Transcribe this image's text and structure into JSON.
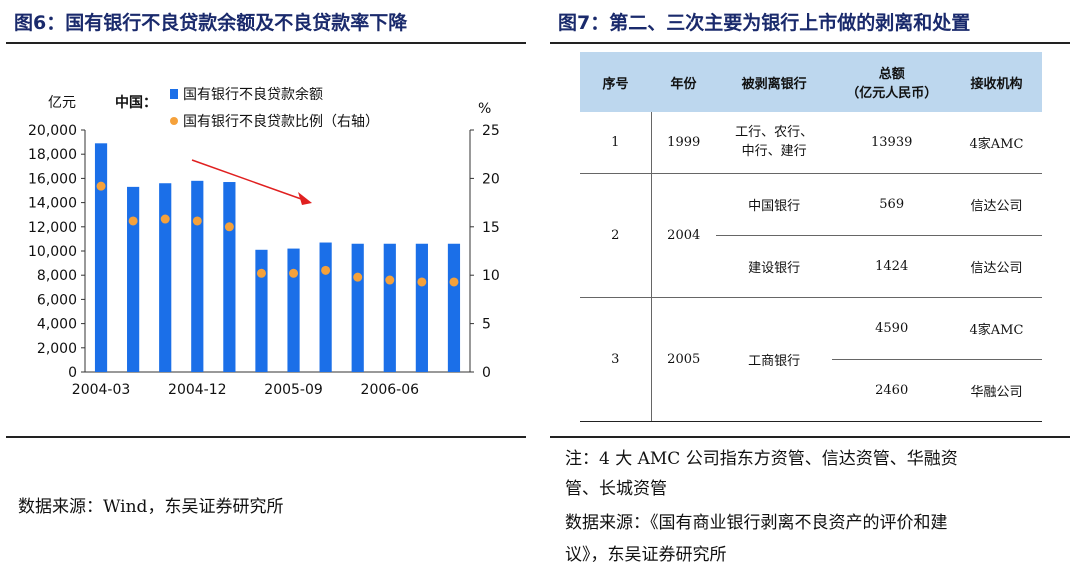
{
  "left": {
    "title": "图6：国有银行不良贷款余额及不良贷款率下降",
    "source": "数据来源：Wind，东吴证券研究所"
  },
  "right": {
    "title": "图7：第二、三次主要为银行上市做的剥离和处置",
    "table": {
      "headers": [
        "序号",
        "年份",
        "被剥离银行",
        "总额\n（亿元人民币）",
        "接收机构"
      ],
      "rows": [
        {
          "no": "1",
          "year": "1999",
          "bank": "工行、农行、\n中行、建行",
          "amount": "13939",
          "receiver": "4家AMC"
        },
        {
          "no": "2",
          "year": "2004",
          "bank": "中国银行",
          "amount": "569",
          "receiver": "信达公司"
        },
        {
          "no": "",
          "year": "",
          "bank": "建设银行",
          "amount": "1424",
          "receiver": "信达公司"
        },
        {
          "no": "3",
          "year": "2005",
          "bank": "工商银行",
          "amount": "4590",
          "receiver": "4家AMC"
        },
        {
          "no": "",
          "year": "",
          "bank": "",
          "amount": "2460",
          "receiver": "华融公司"
        }
      ]
    },
    "note_line1": "注：4 大 AMC 公司指东方资管、信达资管、华融资",
    "note_line2": "管、长城资管",
    "source_line1": "数据来源：《国有商业银行剥离不良资产的评价和建",
    "source_line2": "议》，东吴证券研究所"
  },
  "chart_data": {
    "type": "bar",
    "title": "",
    "region_label": "中国：",
    "ylabel": "亿元",
    "y2label": "%",
    "ylim": [
      0,
      20000
    ],
    "y2lim": [
      0,
      25
    ],
    "yticks": [
      "0",
      "2,000",
      "4,000",
      "6,000",
      "8,000",
      "10,000",
      "12,000",
      "14,000",
      "16,000",
      "18,000",
      "20,000"
    ],
    "y2ticks": [
      "0",
      "5",
      "10",
      "15",
      "20",
      "25"
    ],
    "x_tick_labels": [
      {
        "label": "2004-03",
        "index": 0
      },
      {
        "label": "2004-12",
        "index": 3
      },
      {
        "label": "2005-09",
        "index": 6
      },
      {
        "label": "2006-06",
        "index": 9
      }
    ],
    "categories": [
      "2004-03",
      "2004-06",
      "2004-09",
      "2004-12",
      "2005-03",
      "2005-06",
      "2005-09",
      "2005-12",
      "2006-03",
      "2006-06",
      "2006-09",
      "2006-12"
    ],
    "series": [
      {
        "name": "国有银行不良贷款余额",
        "kind": "bar",
        "axis": "left",
        "color": "#1b6fe8",
        "values": [
          18900,
          15300,
          15600,
          15800,
          15700,
          10100,
          10200,
          10700,
          10600,
          10600,
          10600,
          10600
        ]
      },
      {
        "name": "国有银行不良贷款比例（右轴）",
        "kind": "scatter",
        "axis": "right",
        "color": "#f5a13b",
        "values": [
          19.2,
          15.6,
          15.8,
          15.6,
          15.0,
          10.2,
          10.2,
          10.5,
          9.8,
          9.5,
          9.3,
          9.3
        ]
      }
    ],
    "annotations": [
      {
        "kind": "arrow",
        "color": "#e02020",
        "direction": "down-right"
      }
    ]
  }
}
